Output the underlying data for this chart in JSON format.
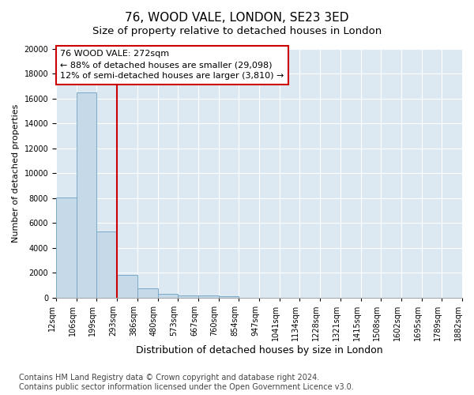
{
  "title1": "76, WOOD VALE, LONDON, SE23 3ED",
  "title2": "Size of property relative to detached houses in London",
  "xlabel": "Distribution of detached houses by size in London",
  "ylabel": "Number of detached properties",
  "bar_values": [
    8050,
    16500,
    5350,
    1850,
    750,
    300,
    200,
    200,
    150,
    0,
    0,
    0,
    0,
    0,
    0,
    0,
    0,
    0,
    0,
    0
  ],
  "bin_labels": [
    "12sqm",
    "106sqm",
    "199sqm",
    "293sqm",
    "386sqm",
    "480sqm",
    "573sqm",
    "667sqm",
    "760sqm",
    "854sqm",
    "947sqm",
    "1041sqm",
    "1134sqm",
    "1228sqm",
    "1321sqm",
    "1415sqm",
    "1508sqm",
    "1602sqm",
    "1695sqm",
    "1789sqm",
    "1882sqm"
  ],
  "bar_color": "#c5d9e8",
  "bar_edge_color": "#7aaac8",
  "vline_color": "#cc0000",
  "vline_position": 3.0,
  "annotation_text": "76 WOOD VALE: 272sqm\n← 88% of detached houses are smaller (29,098)\n12% of semi-detached houses are larger (3,810) →",
  "annotation_box_edgecolor": "#cc0000",
  "ylim": [
    0,
    20000
  ],
  "yticks": [
    0,
    2000,
    4000,
    6000,
    8000,
    10000,
    12000,
    14000,
    16000,
    18000,
    20000
  ],
  "background_color": "#dce9f3",
  "footer": "Contains HM Land Registry data © Crown copyright and database right 2024.\nContains public sector information licensed under the Open Government Licence v3.0.",
  "title1_fontsize": 11,
  "title2_fontsize": 9.5,
  "ylabel_fontsize": 8,
  "xlabel_fontsize": 9,
  "annotation_fontsize": 8,
  "tick_fontsize": 7,
  "footer_fontsize": 7
}
